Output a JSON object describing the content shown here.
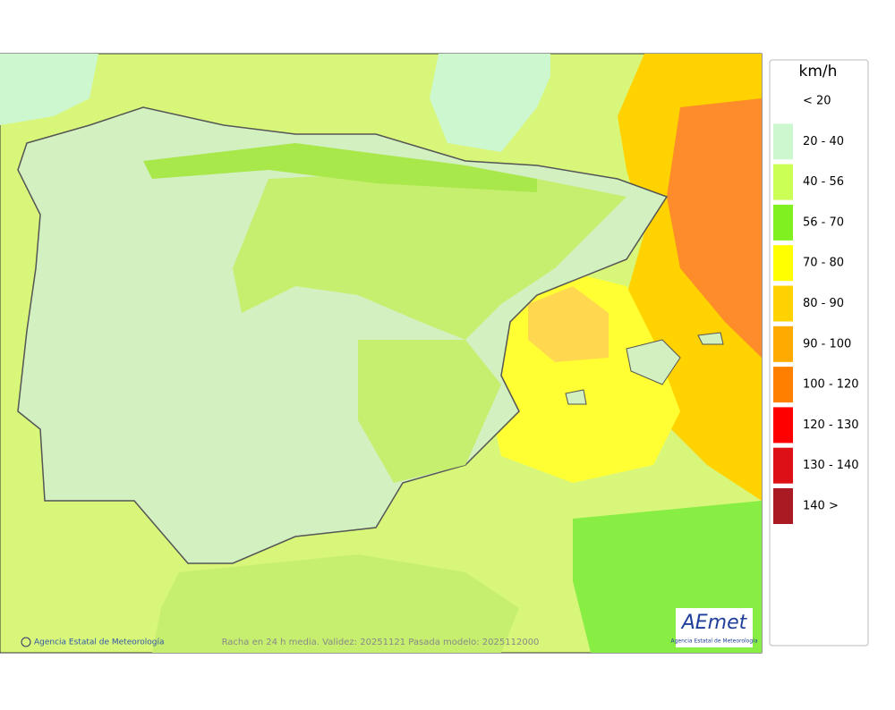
{
  "map": {
    "credit": "Agencia Estatal de Meteorología",
    "caption": "Racha en 24 h media. Validez: 20251121 Pasada modelo: 2025112000"
  },
  "logo": {
    "name": "AEmet",
    "subtitle": "Agencia Estatal de Meteorología"
  },
  "legend": {
    "title": "km/h",
    "items": [
      {
        "label": "< 20",
        "color": "#ffffff"
      },
      {
        "label": "20 - 40",
        "color": "#ccf7cf"
      },
      {
        "label": "40 - 56",
        "color": "#ccff55"
      },
      {
        "label": "56 - 70",
        "color": "#80f020"
      },
      {
        "label": "70 - 80",
        "color": "#ffff00"
      },
      {
        "label": "80 - 90",
        "color": "#ffd200"
      },
      {
        "label": "90 - 100",
        "color": "#ffaa00"
      },
      {
        "label": "100 - 120",
        "color": "#ff8000"
      },
      {
        "label": "120 - 130",
        "color": "#ff0000"
      },
      {
        "label": "130 - 140",
        "color": "#dd1015"
      },
      {
        "label": "140 >",
        "color": "#aa1a22"
      }
    ]
  }
}
